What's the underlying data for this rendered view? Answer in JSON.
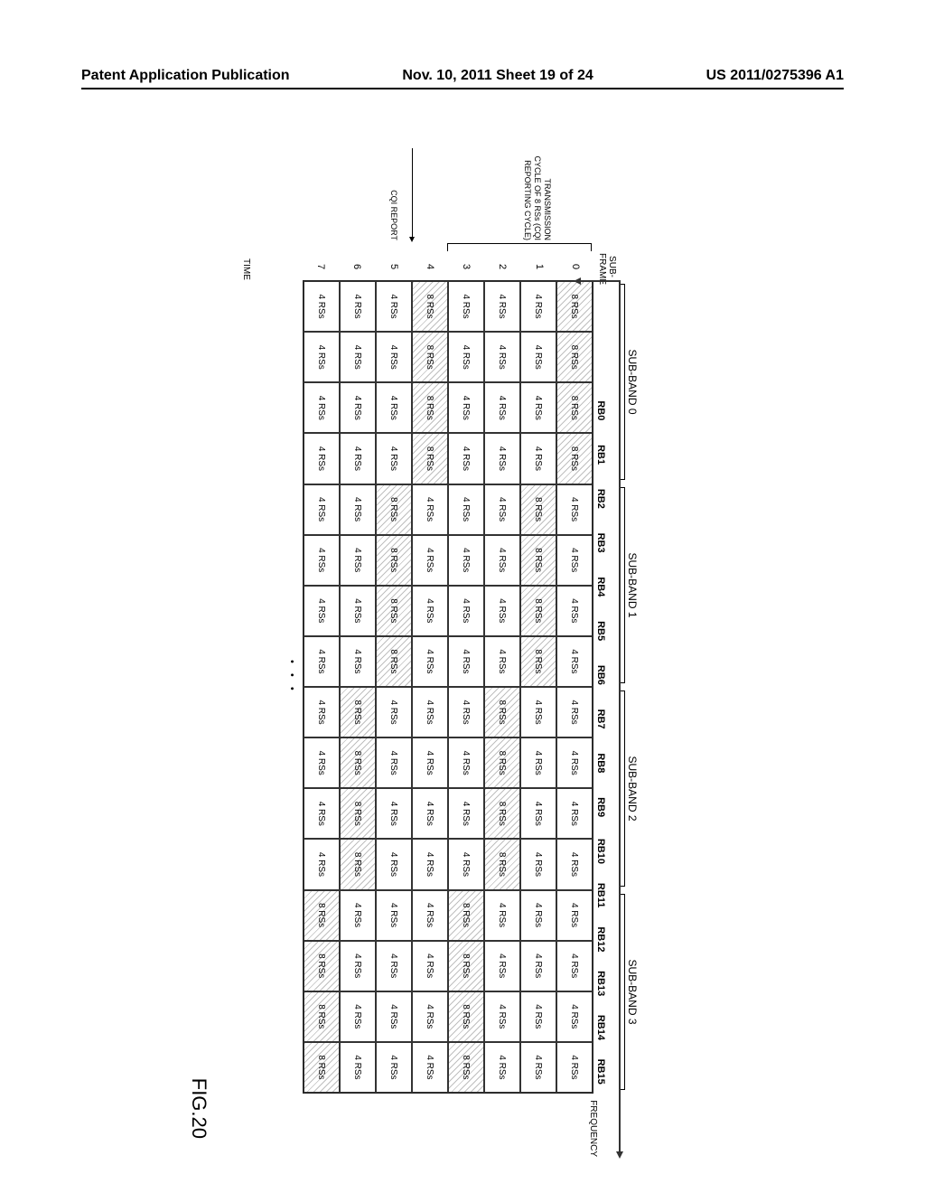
{
  "header": {
    "left": "Patent Application Publication",
    "center": "Nov. 10, 2011  Sheet 19 of 24",
    "right": "US 2011/0275396 A1"
  },
  "figure_label": "FIG.20",
  "axes": {
    "frequency_label": "FREQUENCY",
    "time_label": "TIME",
    "subframe_label_top": "SUB-",
    "subframe_label_bottom": "FRAME"
  },
  "sub_bands": [
    "SUB-BAND 0",
    "SUB-BAND 1",
    "SUB-BAND 2",
    "SUB-BAND 3"
  ],
  "rb_headers": [
    "RB0",
    "RB1",
    "RB2",
    "RB3",
    "RB4",
    "RB5",
    "RB6",
    "RB7",
    "RB8",
    "RB9",
    "RB10",
    "RB11",
    "RB12",
    "RB13",
    "RB14",
    "RB15"
  ],
  "subframes": [
    "0",
    "1",
    "2",
    "3",
    "4",
    "5",
    "6",
    "7"
  ],
  "annotations": {
    "transmission_cycle": "TRANSMISSION CYCLE OF 8 RSs (CQI REPORTING CYCLE)",
    "cqi_report": "CQI REPORT",
    "dots": "• • •"
  },
  "cells": {
    "val4": "4 RSs",
    "val8": "8 RSs"
  },
  "grid": [
    [
      "8",
      "8",
      "8",
      "8",
      "4",
      "4",
      "4",
      "4",
      "4",
      "4",
      "4",
      "4",
      "4",
      "4",
      "4",
      "4"
    ],
    [
      "4",
      "4",
      "4",
      "4",
      "8",
      "8",
      "8",
      "8",
      "4",
      "4",
      "4",
      "4",
      "4",
      "4",
      "4",
      "4"
    ],
    [
      "4",
      "4",
      "4",
      "4",
      "4",
      "4",
      "4",
      "4",
      "8",
      "8",
      "8",
      "8",
      "4",
      "4",
      "4",
      "4"
    ],
    [
      "4",
      "4",
      "4",
      "4",
      "4",
      "4",
      "4",
      "4",
      "4",
      "4",
      "4",
      "4",
      "8",
      "8",
      "8",
      "8"
    ],
    [
      "8",
      "8",
      "8",
      "8",
      "4",
      "4",
      "4",
      "4",
      "4",
      "4",
      "4",
      "4",
      "4",
      "4",
      "4",
      "4"
    ],
    [
      "4",
      "4",
      "4",
      "4",
      "8",
      "8",
      "8",
      "8",
      "4",
      "4",
      "4",
      "4",
      "4",
      "4",
      "4",
      "4"
    ],
    [
      "4",
      "4",
      "4",
      "4",
      "4",
      "4",
      "4",
      "4",
      "8",
      "8",
      "8",
      "8",
      "4",
      "4",
      "4",
      "4"
    ],
    [
      "4",
      "4",
      "4",
      "4",
      "4",
      "4",
      "4",
      "4",
      "4",
      "4",
      "4",
      "4",
      "8",
      "8",
      "8",
      "8"
    ]
  ],
  "style": {
    "grid_rows": 8,
    "grid_cols": 16,
    "cell_border_color": "#333333",
    "hatched_fill_angle_deg": 45,
    "background_color": "#ffffff",
    "font_family": "Arial",
    "rb_header_fontsize": 11,
    "cell_fontsize": 10,
    "subband_fontsize": 12
  }
}
